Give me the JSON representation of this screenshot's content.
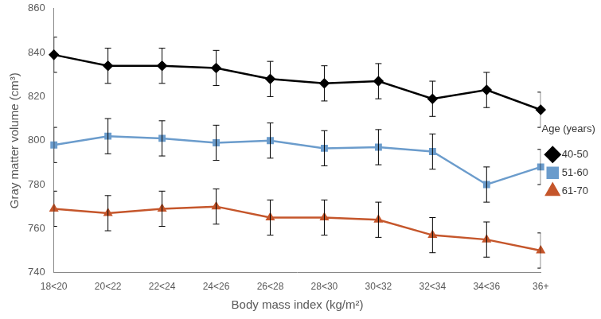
{
  "chart_data": {
    "type": "line",
    "x_label": "Body mass index (kg/m²)",
    "y_label": "Gray matter volume (cm³)",
    "legend_title": "Age (years)",
    "categories": [
      "18<20",
      "20<22",
      "22<24",
      "24<26",
      "26<28",
      "28<30",
      "30<32",
      "32<34",
      "34<36",
      "36+"
    ],
    "series": [
      {
        "name": "40-50",
        "color": "#000000",
        "marker": "diamond",
        "values": [
          839,
          834,
          834,
          833,
          828,
          826,
          827,
          819,
          823,
          814
        ],
        "errors": [
          8,
          8,
          8,
          8,
          8,
          8,
          8,
          8,
          8,
          8
        ]
      },
      {
        "name": "51-60",
        "color": "#6b9ccc",
        "marker": "square",
        "values": [
          798,
          802,
          801,
          799,
          800,
          796.5,
          797,
          795,
          780,
          788
        ],
        "errors": [
          8,
          8,
          8,
          8,
          8,
          8,
          8,
          8,
          8,
          8
        ]
      },
      {
        "name": "61-70",
        "color": "#c5562b",
        "marker": "triangle",
        "values": [
          769,
          767,
          769,
          770,
          765,
          765,
          764,
          757,
          755,
          750
        ],
        "errors": [
          8,
          8,
          8,
          8,
          8,
          8,
          8,
          8,
          8,
          8
        ]
      }
    ],
    "ylim": [
      740,
      860
    ],
    "yticks": [
      740,
      760,
      780,
      800,
      820,
      840,
      860
    ],
    "grid": false,
    "legend": "right"
  }
}
